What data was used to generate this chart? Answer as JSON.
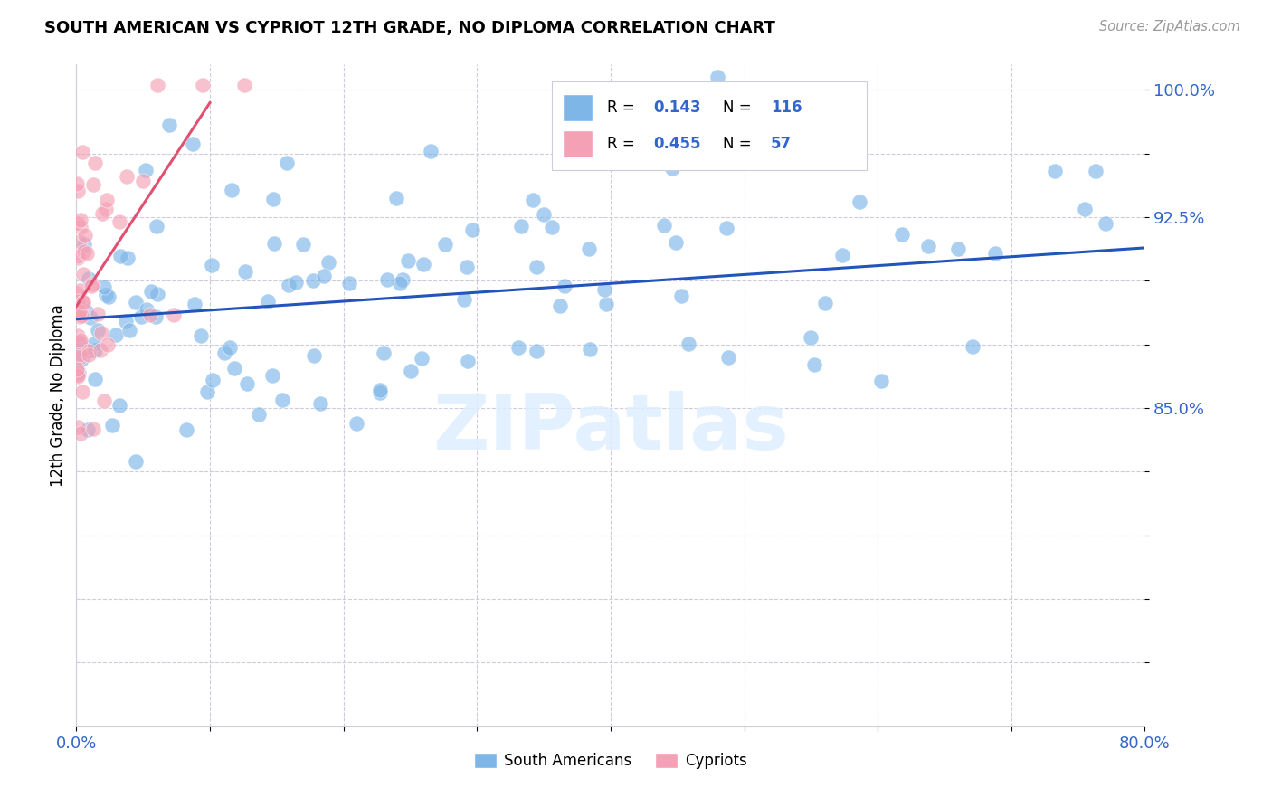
{
  "title": "SOUTH AMERICAN VS CYPRIOT 12TH GRADE, NO DIPLOMA CORRELATION CHART",
  "source": "Source: ZipAtlas.com",
  "ylabel": "12th Grade, No Diploma",
  "watermark": "ZIPatlas",
  "xlim": [
    0.0,
    0.8
  ],
  "ylim": [
    0.75,
    1.01
  ],
  "ytick_vals": [
    0.775,
    0.8,
    0.825,
    0.85,
    0.875,
    0.9,
    0.925,
    0.95,
    0.975,
    1.0
  ],
  "ytick_labels": [
    "",
    "",
    "",
    "",
    "85.0%",
    "",
    "",
    "92.5%",
    "",
    "100.0%"
  ],
  "xtick_vals": [
    0.0,
    0.1,
    0.2,
    0.3,
    0.4,
    0.5,
    0.6,
    0.7,
    0.8
  ],
  "xtick_labels": [
    "0.0%",
    "",
    "",
    "",
    "",
    "",
    "",
    "",
    "80.0%"
  ],
  "blue_color": "#7EB6E8",
  "pink_color": "#F4A0B5",
  "blue_line_color": "#2255BB",
  "pink_line_color": "#E05070",
  "tick_color": "#3366CC",
  "legend_blue_R": "0.143",
  "legend_blue_N": "116",
  "legend_pink_R": "0.455",
  "legend_pink_N": "57",
  "blue_trend_x": [
    0.0,
    0.8
  ],
  "blue_trend_y": [
    0.91,
    0.938
  ],
  "pink_trend_x": [
    0.0,
    0.1
  ],
  "pink_trend_y": [
    0.915,
    0.995
  ]
}
